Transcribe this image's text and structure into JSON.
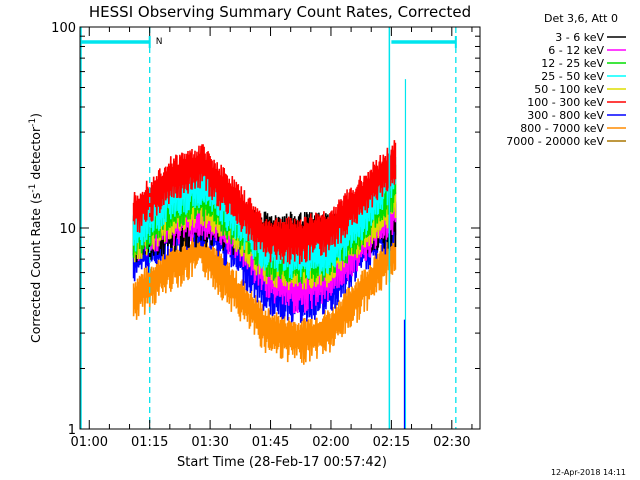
{
  "chart_data": {
    "type": "line",
    "title": "HESSI Observing Summary Count Rates, Corrected",
    "xlabel": "Start Time (28-Feb-17 00:57:42)",
    "ylabel_parts": {
      "main": "Corrected Count Rate (s",
      "exp1": "-1",
      "mid": " detector",
      "exp2": "-1",
      "end": ")"
    },
    "y_scale": "log",
    "ylim": [
      1,
      100
    ],
    "xlim": [
      "00:57:42",
      "02:37:00"
    ],
    "x_ticks": [
      {
        "label": "01:00",
        "time": "01:00"
      },
      {
        "label": "01:15",
        "time": "01:15"
      },
      {
        "label": "01:30",
        "time": "01:30"
      },
      {
        "label": "01:45",
        "time": "01:45"
      },
      {
        "label": "02:00",
        "time": "02:00"
      },
      {
        "label": "02:15",
        "time": "02:15"
      },
      {
        "label": "02:30",
        "time": "02:30"
      }
    ],
    "y_ticks": [
      {
        "label": "1",
        "value": 1
      },
      {
        "label": "10",
        "value": 10
      },
      {
        "label": "100",
        "value": 100
      }
    ],
    "legend": {
      "header": "Det 3,6, Att 0",
      "position": "top-right-outside",
      "items": [
        {
          "label": "3 - 6 keV",
          "color": "#000000"
        },
        {
          "label": "6 - 12 keV",
          "color": "#ff00ff"
        },
        {
          "label": "12 - 25 keV",
          "color": "#00dd00"
        },
        {
          "label": "25 - 50 keV",
          "color": "#00ffff"
        },
        {
          "label": "50 - 100 keV",
          "color": "#dddd00"
        },
        {
          "label": "100 - 300 keV",
          "color": "#ff0000"
        },
        {
          "label": "300 - 800 keV",
          "color": "#0000ff"
        },
        {
          "label": "800 - 7000 keV",
          "color": "#ff8c00"
        },
        {
          "label": "7000 - 20000 keV",
          "color": "#aa7700"
        }
      ]
    },
    "data_interval": {
      "start": "01:11",
      "end": "02:18"
    },
    "series": [
      {
        "name": "100 - 300 keV",
        "color": "#ff0000",
        "x": [
          "01:11",
          "01:20",
          "01:28",
          "01:36",
          "01:44",
          "01:52",
          "02:00",
          "02:08",
          "02:16"
        ],
        "y": [
          12,
          18,
          21,
          14,
          9,
          9,
          10,
          15,
          22
        ]
      },
      {
        "name": "25 - 50 keV",
        "color": "#00ffff",
        "x": [
          "01:11",
          "01:20",
          "01:28",
          "01:36",
          "01:44",
          "01:52",
          "02:00",
          "02:08",
          "02:16"
        ],
        "y": [
          10,
          15,
          17,
          12,
          8,
          7.5,
          8,
          12,
          20
        ]
      },
      {
        "name": "12 - 25 keV",
        "color": "#00dd00",
        "x": [
          "01:11",
          "01:20",
          "01:28",
          "01:36",
          "01:44",
          "01:52",
          "02:00",
          "02:08",
          "02:16"
        ],
        "y": [
          9.5,
          13,
          15,
          11,
          7.5,
          7,
          7.5,
          11,
          17
        ]
      },
      {
        "name": "50 - 100 keV",
        "color": "#dddd00",
        "x": [
          "01:11",
          "01:20",
          "01:28",
          "01:36",
          "01:44",
          "01:52",
          "02:00",
          "02:08",
          "02:16"
        ],
        "y": [
          9,
          12,
          14,
          10.5,
          7,
          6.5,
          7,
          10,
          15
        ]
      },
      {
        "name": "6 - 12 keV",
        "color": "#ff00ff",
        "x": [
          "01:11",
          "01:20",
          "01:28",
          "01:36",
          "01:44",
          "01:52",
          "02:00",
          "02:08",
          "02:16"
        ],
        "y": [
          9,
          11,
          12,
          9.5,
          6,
          5,
          6,
          9,
          13
        ]
      },
      {
        "name": "3 - 6 keV",
        "color": "#000000",
        "x": [
          "01:11",
          "01:20",
          "01:28",
          "01:36",
          "01:44",
          "01:52",
          "02:00",
          "02:08",
          "02:16"
        ],
        "y": [
          9,
          10,
          11,
          10,
          9.5,
          9.5,
          9.5,
          10,
          11
        ]
      },
      {
        "name": "300 - 800 keV",
        "color": "#0000ff",
        "x": [
          "01:11",
          "01:20",
          "01:28",
          "01:36",
          "01:44",
          "01:52",
          "02:00",
          "02:08",
          "02:16"
        ],
        "y": [
          7,
          10,
          11,
          8,
          5,
          4.5,
          5,
          8,
          11
        ]
      },
      {
        "name": "800 - 7000 keV",
        "color": "#ff8c00",
        "x": [
          "01:11",
          "01:20",
          "01:28",
          "01:36",
          "01:44",
          "01:52",
          "02:00",
          "02:08",
          "02:16"
        ],
        "y": [
          4.5,
          6.5,
          8,
          5,
          3.2,
          2.8,
          3.2,
          5,
          8
        ]
      }
    ],
    "attenuator_bars": [
      {
        "start": "00:57:42",
        "end": "01:15",
        "label": "N"
      },
      {
        "start": "02:15",
        "end": "02:31",
        "label": ""
      }
    ],
    "footer_stamp": "12-Apr-2018 14:11"
  }
}
